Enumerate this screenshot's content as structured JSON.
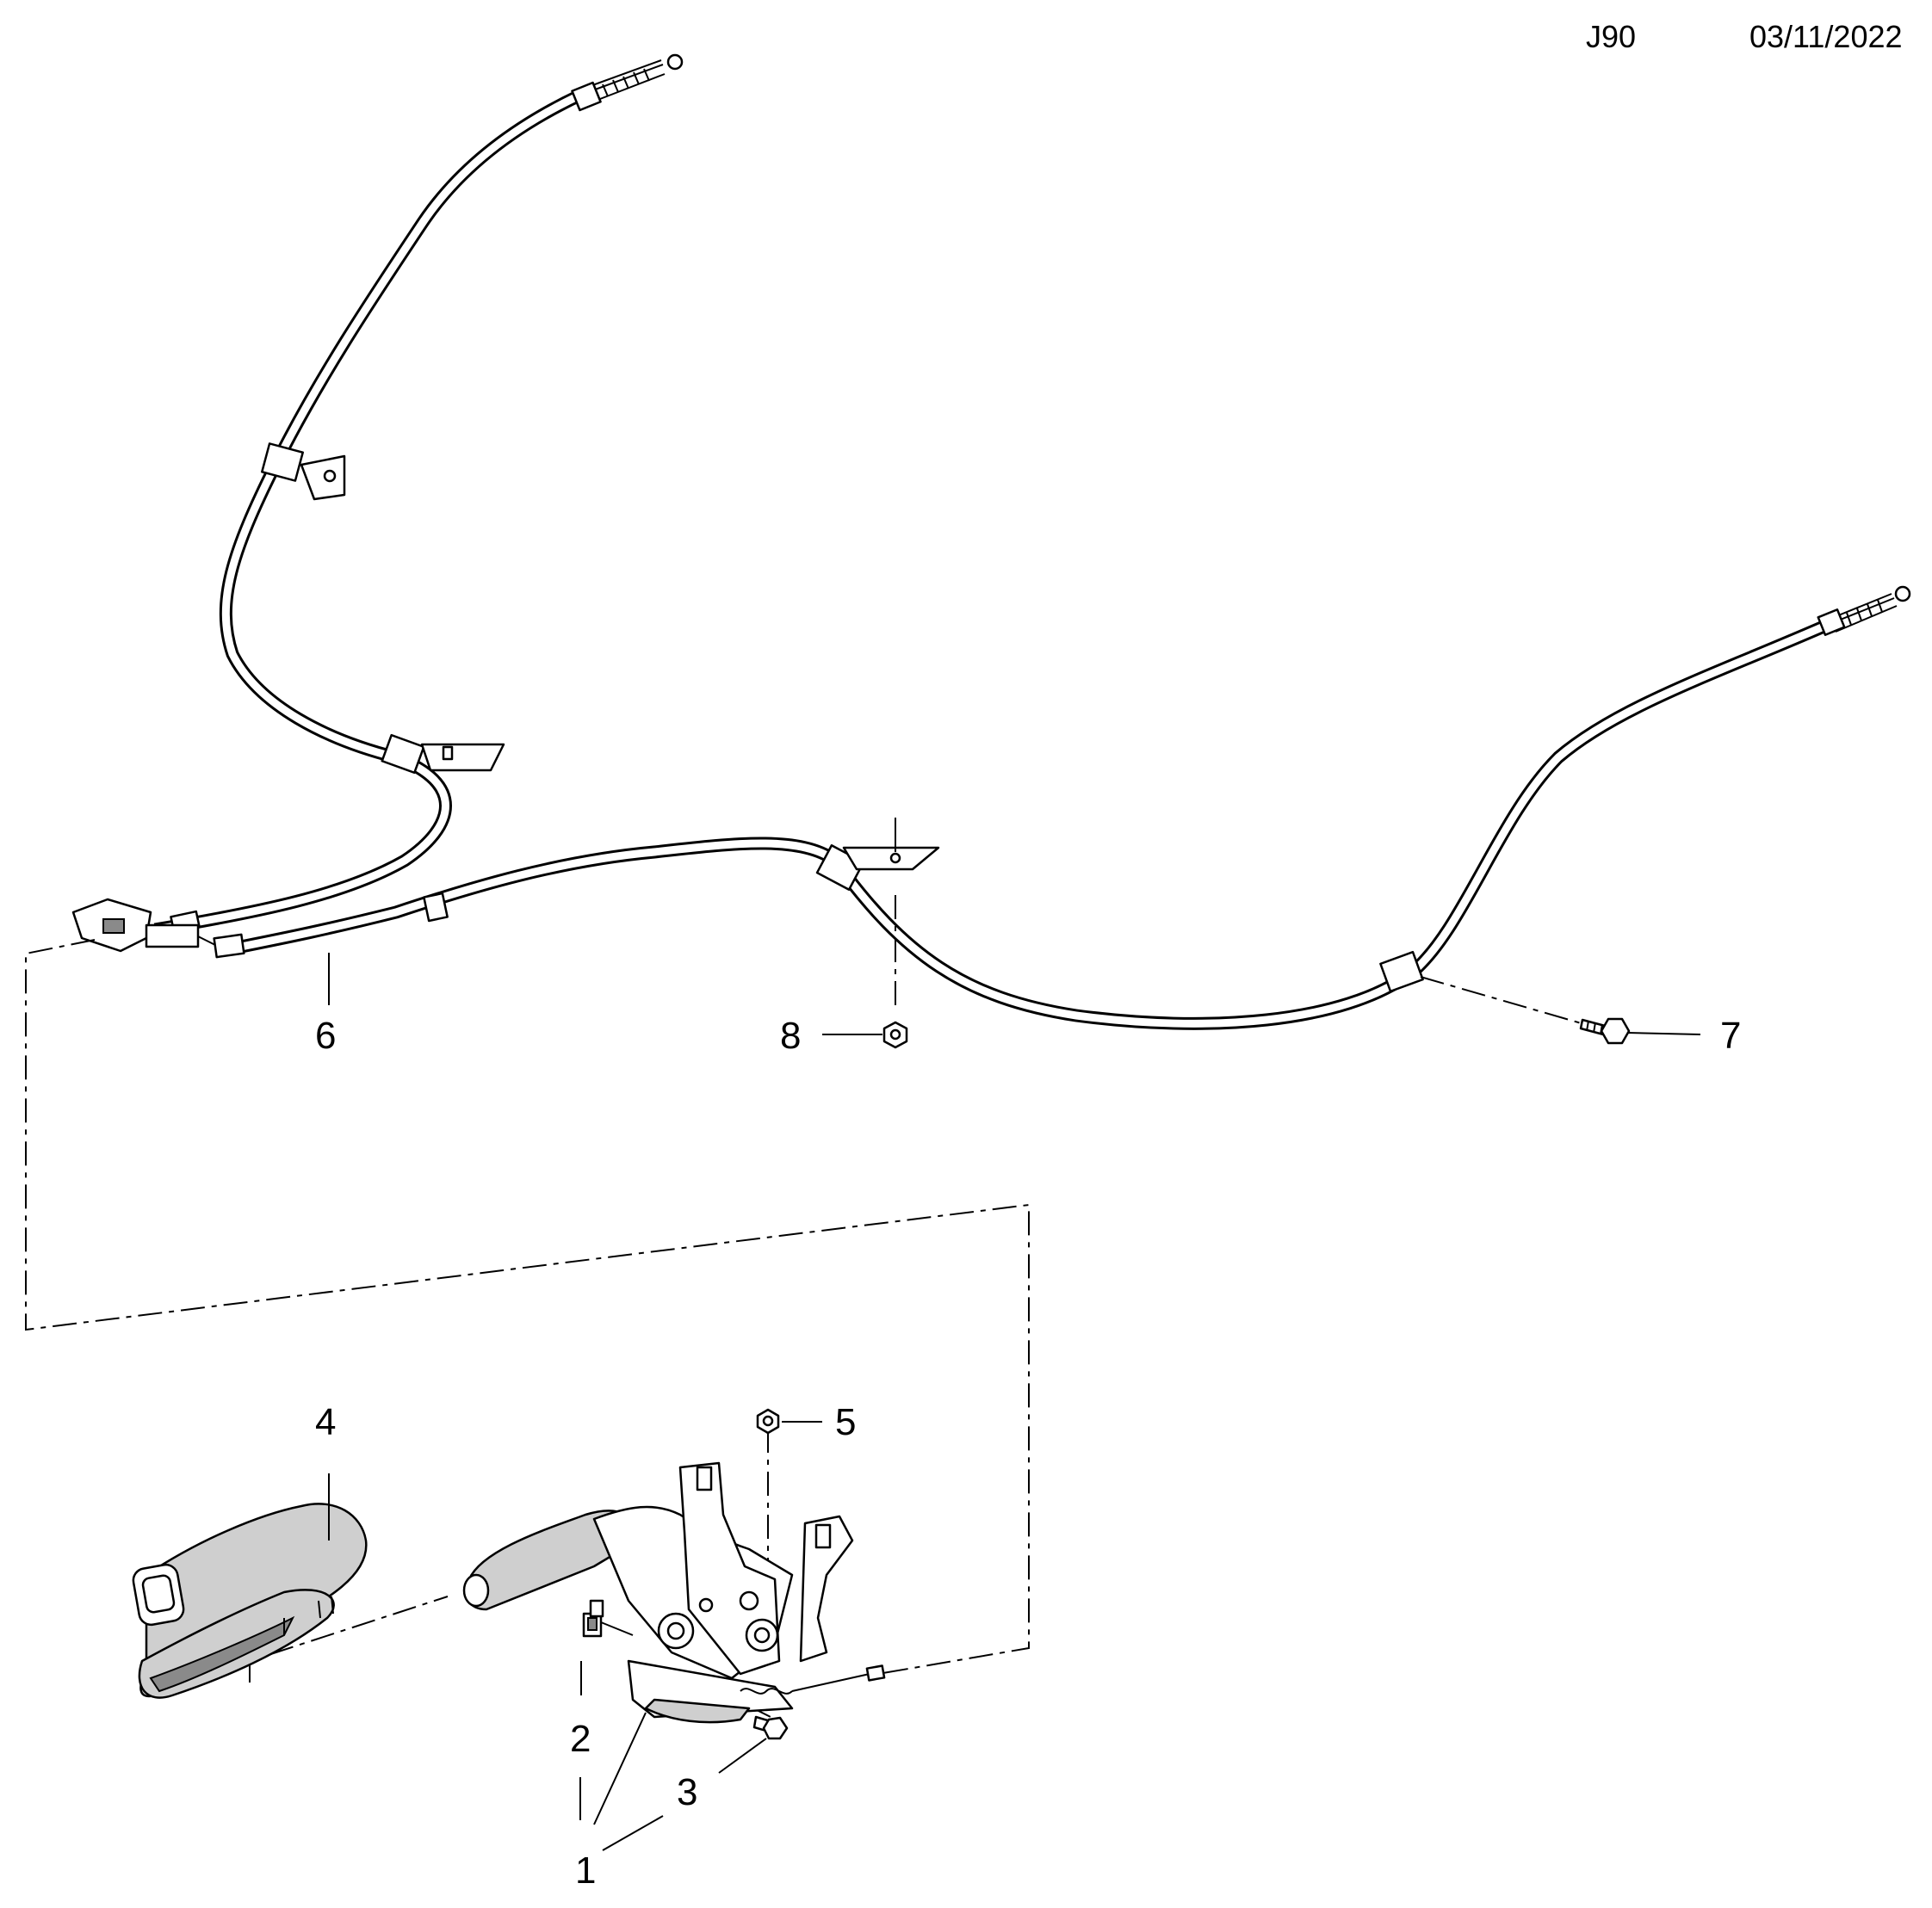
{
  "header": {
    "code": "J90",
    "date": "03/11/2022"
  },
  "callouts": [
    {
      "id": "1",
      "label": "1"
    },
    {
      "id": "2",
      "label": "2"
    },
    {
      "id": "3",
      "label": "3"
    },
    {
      "id": "4",
      "label": "4"
    },
    {
      "id": "5",
      "label": "5"
    },
    {
      "id": "6",
      "label": "6"
    },
    {
      "id": "7",
      "label": "7"
    },
    {
      "id": "8",
      "label": "8"
    }
  ]
}
